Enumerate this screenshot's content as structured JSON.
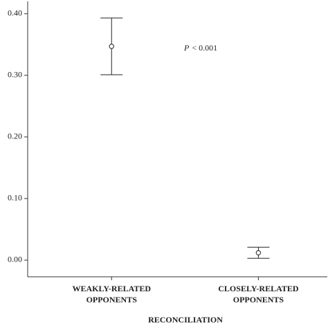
{
  "chart_data": {
    "type": "errorbar",
    "categories": [
      [
        "WEAKLY-RELATED",
        "OPPONENTS"
      ],
      [
        "CLOSELY-RELATED",
        "OPPONENTS"
      ]
    ],
    "values": [
      0.347,
      0.012
    ],
    "errors": [
      0.046,
      0.009
    ],
    "color": "#222222",
    "xlabel": "RECONCILIATION",
    "annotation": {
      "variable": "P",
      "text": "< 0.001"
    },
    "ylim": [
      -0.027,
      0.42
    ],
    "yticks": [
      {
        "value": 0,
        "label": "0.00"
      },
      {
        "value": 0.1,
        "label": "0.10"
      },
      {
        "value": 0.2,
        "label": "0.20"
      },
      {
        "value": 0.3,
        "label": "0.30"
      },
      {
        "value": 0.4,
        "label": "0.40"
      }
    ]
  }
}
